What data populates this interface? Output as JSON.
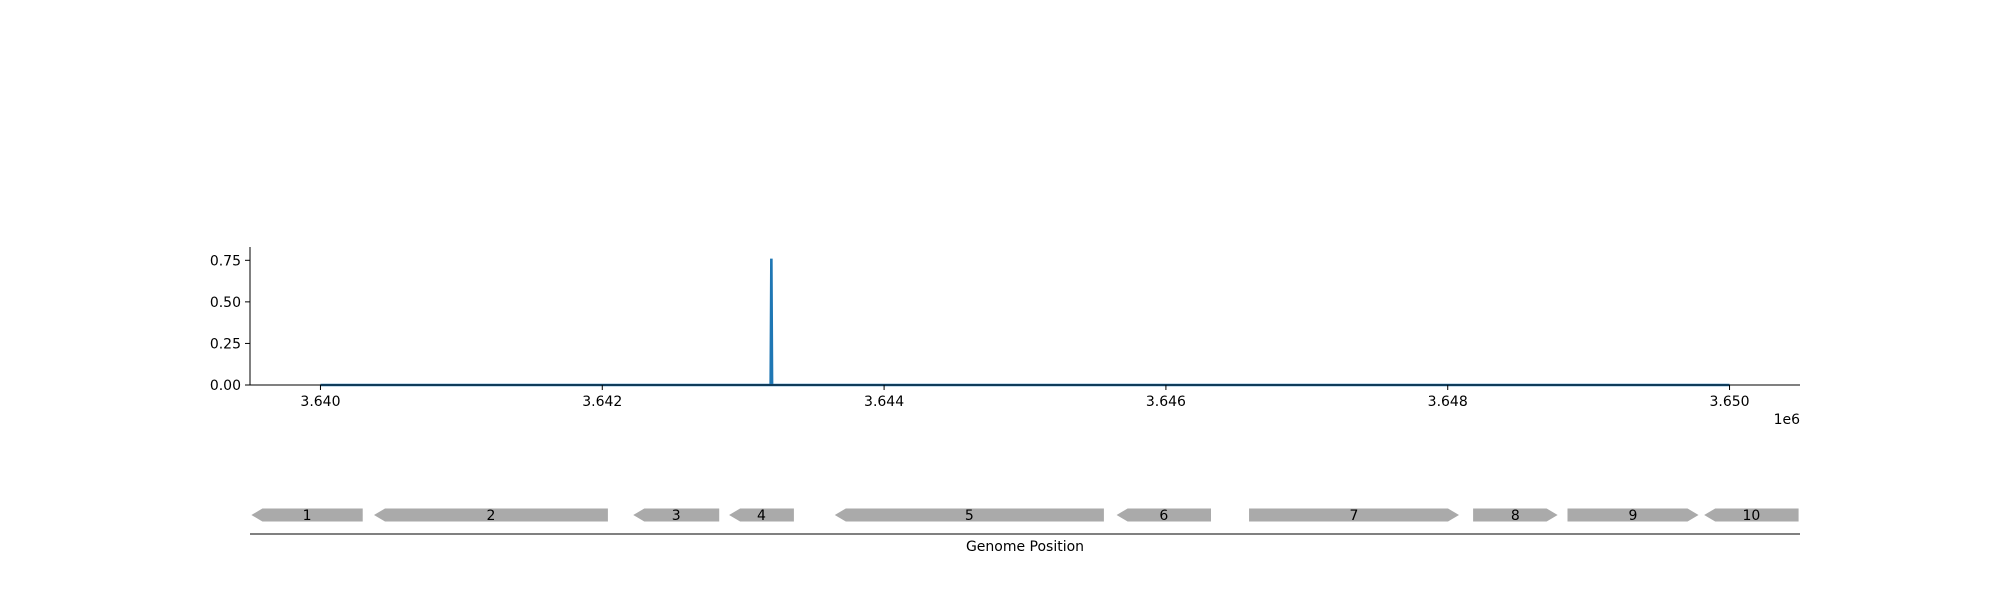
{
  "chart_data": [
    {
      "type": "line",
      "title": "",
      "xlabel": "",
      "ylabel": "",
      "x_offset_label": "1e6",
      "xlim": [
        3639500,
        3650500
      ],
      "ylim": [
        0,
        0.83
      ],
      "x_ticks": [
        3640000,
        3642000,
        3644000,
        3646000,
        3648000,
        3650000
      ],
      "x_tick_labels": [
        "3.640",
        "3.642",
        "3.644",
        "3.646",
        "3.648",
        "3.650"
      ],
      "y_ticks": [
        0,
        0.25,
        0.5,
        0.75
      ],
      "y_tick_labels": [
        "0.00",
        "0.25",
        "0.50",
        "0.75"
      ],
      "grid": false,
      "series": [
        {
          "color": "#1f77b4",
          "x": [
            3640000,
            3643195,
            3643200,
            3643205,
            3650000
          ],
          "y": [
            0,
            0,
            0.76,
            0,
            0
          ]
        }
      ]
    },
    {
      "type": "gene_map",
      "xlabel": "Genome Position",
      "xlim": [
        3639500,
        3650500
      ],
      "color": "#aaaaaa",
      "genes": [
        {
          "label": "1",
          "start": 3639510,
          "end": 3640300,
          "strand": "-"
        },
        {
          "label": "2",
          "start": 3640380,
          "end": 3642040,
          "strand": "-"
        },
        {
          "label": "3",
          "start": 3642220,
          "end": 3642830,
          "strand": "-"
        },
        {
          "label": "4",
          "start": 3642900,
          "end": 3643360,
          "strand": "-"
        },
        {
          "label": "5",
          "start": 3643650,
          "end": 3645560,
          "strand": "-"
        },
        {
          "label": "6",
          "start": 3645650,
          "end": 3646320,
          "strand": "-"
        },
        {
          "label": "7",
          "start": 3646590,
          "end": 3648080,
          "strand": "+"
        },
        {
          "label": "8",
          "start": 3648180,
          "end": 3648780,
          "strand": "+"
        },
        {
          "label": "9",
          "start": 3648850,
          "end": 3649780,
          "strand": "+"
        },
        {
          "label": "10",
          "start": 3649820,
          "end": 3650490,
          "strand": "-"
        }
      ]
    }
  ]
}
